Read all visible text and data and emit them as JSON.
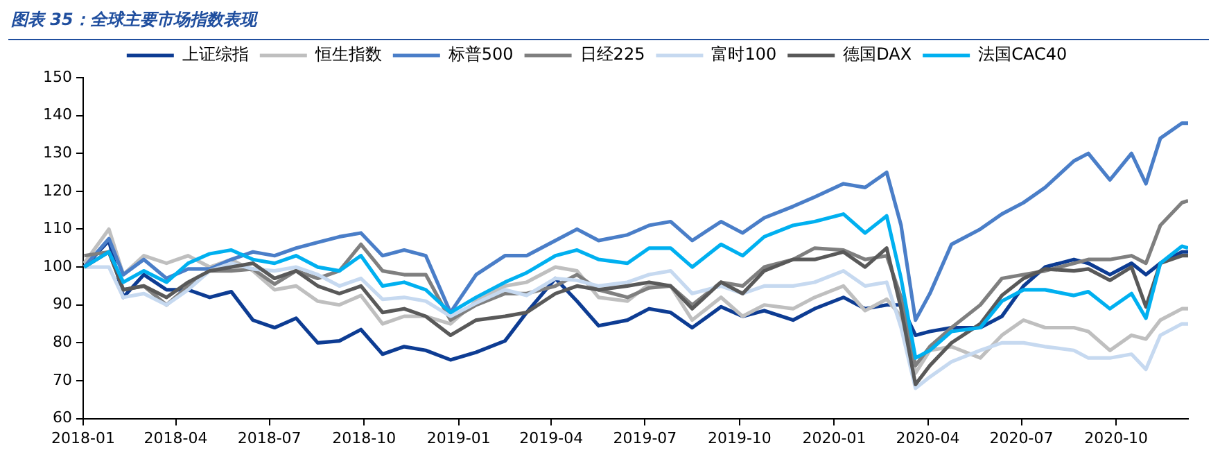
{
  "chart_data": {
    "type": "line",
    "title": "图表 35：全球主要市场指数表现",
    "legend": "top",
    "x": [
      "2018-01-02",
      "2018-01-26",
      "2018-02-09",
      "2018-03-01",
      "2018-03-23",
      "2018-04-13",
      "2018-05-04",
      "2018-05-25",
      "2018-06-15",
      "2018-07-06",
      "2018-07-27",
      "2018-08-17",
      "2018-09-07",
      "2018-09-28",
      "2018-10-19",
      "2018-11-09",
      "2018-11-30",
      "2018-12-24",
      "2019-01-18",
      "2019-02-15",
      "2019-03-08",
      "2019-04-05",
      "2019-04-26",
      "2019-05-17",
      "2019-06-14",
      "2019-07-05",
      "2019-07-26",
      "2019-08-16",
      "2019-09-13",
      "2019-10-04",
      "2019-10-25",
      "2019-11-22",
      "2019-12-13",
      "2020-01-10",
      "2020-01-31",
      "2020-02-21",
      "2020-03-06",
      "2020-03-20",
      "2020-04-03",
      "2020-04-24",
      "2020-05-22",
      "2020-06-12",
      "2020-07-03",
      "2020-07-24",
      "2020-08-21",
      "2020-09-04",
      "2020-09-25",
      "2020-10-16",
      "2020-10-30",
      "2020-11-13",
      "2020-12-04",
      "2020-12-10"
    ],
    "xlim": [
      "2018-01-01",
      "2020-12-10"
    ],
    "xticks": [
      "2018-01",
      "2018-04",
      "2018-07",
      "2018-10",
      "2019-01",
      "2019-04",
      "2019-07",
      "2019-10",
      "2020-01",
      "2020-04",
      "2020-07",
      "2020-10"
    ],
    "ylim": [
      60,
      150
    ],
    "yticks": [
      60,
      70,
      80,
      90,
      100,
      110,
      120,
      130,
      140,
      150
    ],
    "series": [
      {
        "name": "上证综指",
        "color": "#0d3c93",
        "values": [
          100,
          107,
          92,
          98,
          94,
          94,
          92,
          93.5,
          86,
          84,
          86.5,
          80,
          80.5,
          83.5,
          77,
          79,
          78,
          75.5,
          77.5,
          80.5,
          88,
          97,
          91,
          84.5,
          86,
          89,
          88,
          84,
          89.5,
          87,
          88.5,
          86,
          89,
          92,
          89,
          90,
          90,
          82,
          83,
          84,
          84,
          87,
          95,
          100,
          102,
          101,
          98,
          101,
          98,
          101,
          104,
          104
        ]
      },
      {
        "name": "恒生指数",
        "color": "#bfbfbf",
        "values": [
          101,
          110,
          98,
          103,
          101,
          103,
          100,
          102,
          99,
          94,
          95,
          91,
          90,
          92.5,
          85,
          87,
          87,
          85,
          91,
          95,
          96,
          100,
          99,
          92,
          91,
          95.5,
          95,
          86,
          92,
          87,
          90,
          89,
          92,
          95,
          88.5,
          91.5,
          87,
          72,
          78,
          79,
          76,
          82,
          86,
          84,
          84,
          83,
          78,
          82,
          81,
          86,
          89,
          89
        ]
      },
      {
        "name": "标普500",
        "color": "#4a7ec8",
        "values": [
          100,
          107.5,
          98,
          102,
          97,
          99.5,
          99.5,
          102,
          104,
          103,
          105,
          106.5,
          108,
          109,
          103,
          104.5,
          103,
          88,
          98,
          103,
          103,
          107,
          110,
          107,
          108.5,
          111,
          112,
          107,
          112,
          109,
          113,
          116,
          118.5,
          122,
          121,
          125,
          111,
          86,
          93,
          106,
          110,
          114,
          117,
          121,
          128,
          130,
          123,
          130,
          122,
          134,
          138,
          138
        ]
      },
      {
        "name": "日经225",
        "color": "#7f7f7f",
        "values": [
          103,
          104,
          94,
          95,
          90,
          95,
          99,
          99,
          99.5,
          95.5,
          99,
          97,
          99,
          106,
          99,
          98,
          98,
          86,
          90,
          93,
          93,
          95,
          98,
          94,
          92,
          94.5,
          95,
          90,
          96,
          95,
          100,
          102,
          105,
          104.5,
          102,
          103,
          92,
          74,
          79,
          84,
          90,
          97,
          98,
          99,
          101,
          102,
          102,
          103,
          101,
          111,
          117,
          117.5
        ]
      },
      {
        "name": "富时100",
        "color": "#c6d9f0",
        "values": [
          100,
          100,
          92,
          93,
          90,
          94,
          99,
          101,
          99.5,
          99,
          100,
          98,
          95,
          97,
          91.5,
          92,
          91,
          87,
          90.5,
          94,
          92.5,
          97,
          96.5,
          95,
          96,
          98,
          99,
          93,
          95,
          93,
          95,
          95,
          96,
          99,
          95,
          96,
          84,
          68,
          71,
          75,
          78,
          80,
          80,
          79,
          78,
          76,
          76,
          77,
          73,
          82,
          85,
          85
        ]
      },
      {
        "name": "德国DAX",
        "color": "#595959",
        "values": [
          100,
          104,
          94,
          95,
          92,
          96,
          99,
          100,
          101,
          97,
          99,
          95,
          93,
          95,
          88,
          89,
          87,
          82,
          86,
          87,
          88,
          93,
          95,
          94,
          95,
          96,
          95,
          89,
          96,
          93,
          99,
          102,
          102,
          104,
          100,
          105,
          89,
          69,
          74,
          80,
          85,
          92.5,
          97,
          99.5,
          99,
          99.5,
          96.5,
          100,
          89.5,
          101,
          103,
          103
        ]
      },
      {
        "name": "法国CAC40",
        "color": "#00b0f0",
        "values": [
          100,
          104,
          96,
          99,
          96,
          101,
          103.5,
          104.5,
          102,
          101,
          103,
          100,
          99,
          103,
          95,
          96,
          94,
          88,
          92,
          96,
          98.5,
          103,
          104.5,
          102,
          101,
          105,
          105,
          100,
          106,
          103,
          108,
          111,
          112,
          114,
          109,
          113.5,
          97,
          76,
          78,
          83,
          84,
          91,
          94,
          94,
          92.5,
          93.5,
          89,
          93,
          86.5,
          101,
          105.5,
          105
        ]
      }
    ]
  }
}
